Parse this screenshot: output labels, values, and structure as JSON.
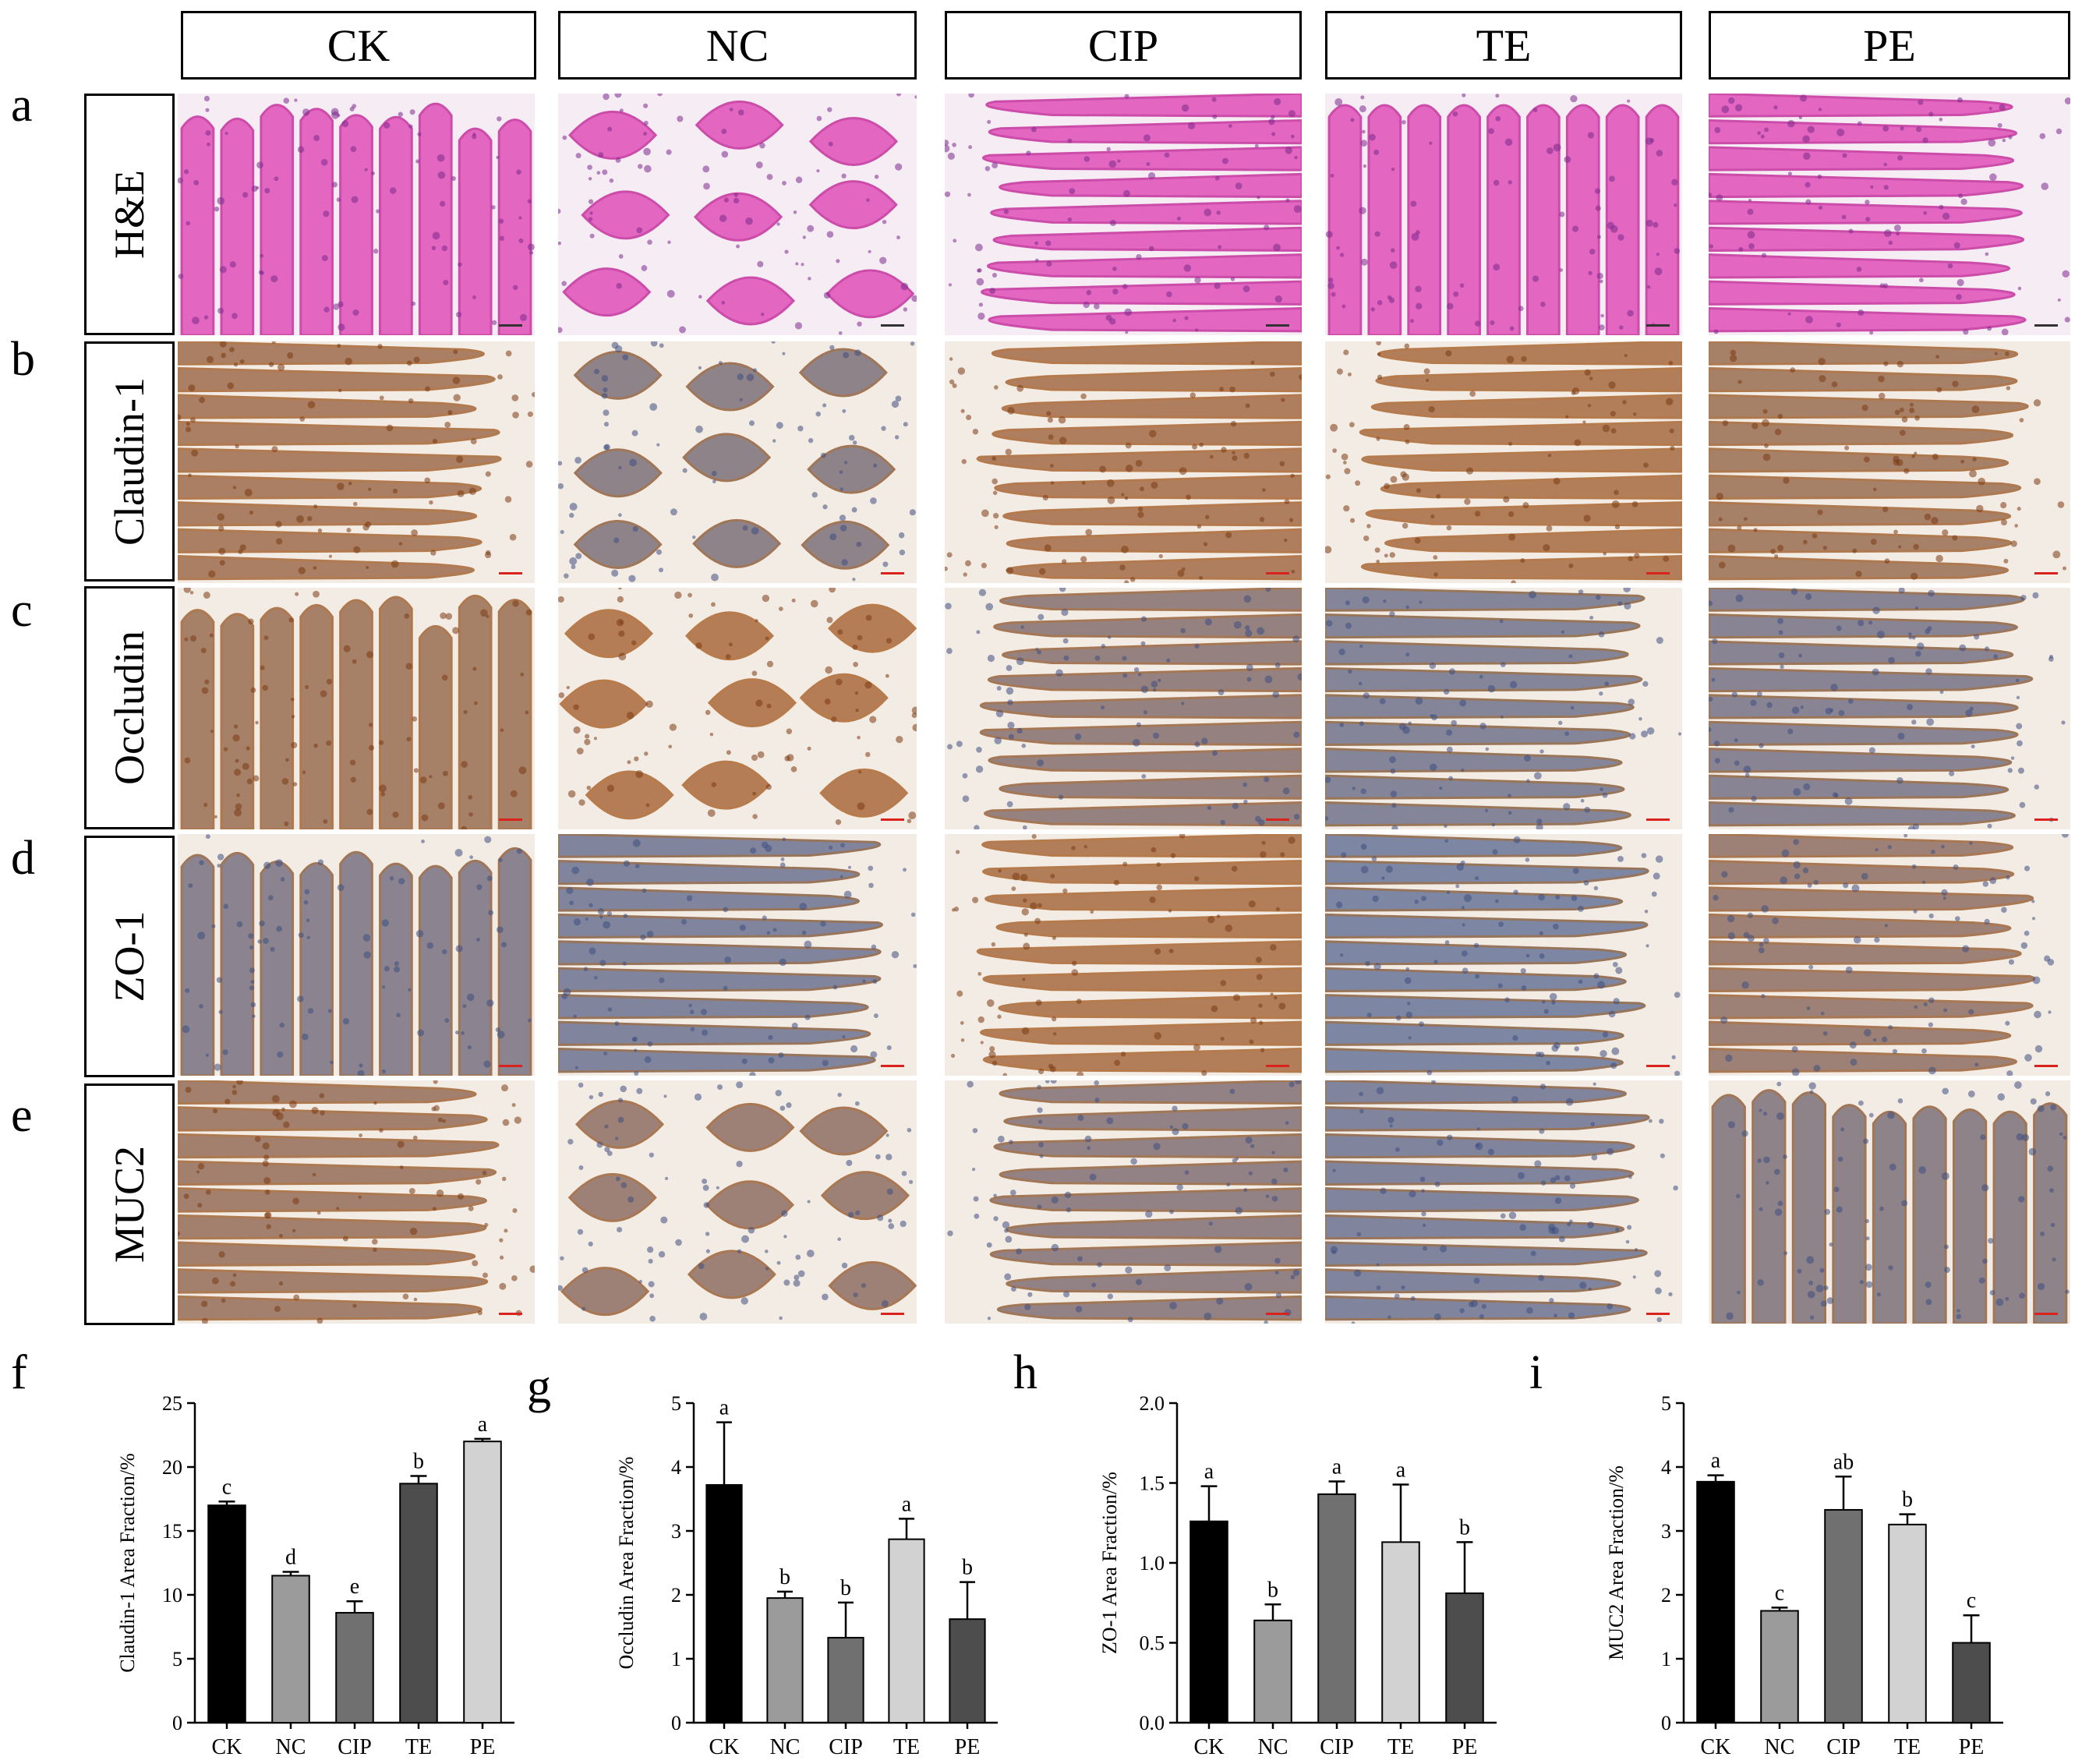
{
  "figure": {
    "row_letters": [
      "a",
      "b",
      "c",
      "d",
      "e"
    ],
    "chart_letters": [
      "f",
      "g",
      "h",
      "i"
    ],
    "column_headers": [
      "CK",
      "NC",
      "CIP",
      "TE",
      "PE"
    ],
    "rows": [
      {
        "letter": "a",
        "label": "H&E",
        "stain": "he"
      },
      {
        "letter": "b",
        "label": "Claudin-1",
        "stain": "ihc"
      },
      {
        "letter": "c",
        "label": "Occludin",
        "stain": "ihc"
      },
      {
        "letter": "d",
        "label": "ZO-1",
        "stain": "ihc"
      },
      {
        "letter": "e",
        "label": "MUC2",
        "stain": "ihc"
      }
    ]
  },
  "colors": {
    "he_background": "#f6ecf3",
    "he_tissue": "#e25bbd",
    "he_nuclei": "#7b2a8c",
    "ihc_background": "#f3ece4",
    "ihc_brown": "#b8733e",
    "ihc_blue": "#6c7fa8",
    "scale_bar": "#d9231f"
  },
  "micrographs": [
    [
      {
        "stain": "he",
        "pattern": "villi-vertical"
      },
      {
        "stain": "he",
        "pattern": "villi-loops"
      },
      {
        "stain": "he",
        "pattern": "villi-fan"
      },
      {
        "stain": "he",
        "pattern": "villi-dense"
      },
      {
        "stain": "he",
        "pattern": "villi-diagonal"
      }
    ],
    [
      {
        "stain": "ihc",
        "brown": 0.75,
        "pattern": "fan-left"
      },
      {
        "stain": "ihc",
        "brown": 0.35,
        "pattern": "crowded"
      },
      {
        "stain": "ihc",
        "brown": 0.8,
        "pattern": "fan-right"
      },
      {
        "stain": "ihc",
        "brown": 0.85,
        "pattern": "fan-right"
      },
      {
        "stain": "ihc",
        "brown": 0.7,
        "pattern": "fan-left"
      }
    ],
    [
      {
        "stain": "ihc",
        "brown": 0.7,
        "pattern": "vertical"
      },
      {
        "stain": "ihc",
        "brown": 0.9,
        "pattern": "crowded"
      },
      {
        "stain": "ihc",
        "brown": 0.45,
        "pattern": "fan-right"
      },
      {
        "stain": "ihc",
        "brown": 0.2,
        "pattern": "fan-left"
      },
      {
        "stain": "ihc",
        "brown": 0.25,
        "pattern": "fan-left"
      }
    ],
    [
      {
        "stain": "ihc",
        "brown": 0.3,
        "pattern": "vertical"
      },
      {
        "stain": "ihc",
        "brown": 0.15,
        "pattern": "fan-left"
      },
      {
        "stain": "ihc",
        "brown": 0.85,
        "pattern": "fan-right"
      },
      {
        "stain": "ihc",
        "brown": 0.1,
        "pattern": "fan-left"
      },
      {
        "stain": "ihc",
        "brown": 0.55,
        "pattern": "fan-left"
      }
    ],
    [
      {
        "stain": "ihc",
        "brown": 0.65,
        "pattern": "fan-left"
      },
      {
        "stain": "ihc",
        "brown": 0.55,
        "pattern": "crowded"
      },
      {
        "stain": "ihc",
        "brown": 0.4,
        "pattern": "fan-right"
      },
      {
        "stain": "ihc",
        "brown": 0.15,
        "pattern": "fan-left"
      },
      {
        "stain": "ihc",
        "brown": 0.35,
        "pattern": "vertical"
      }
    ]
  ],
  "chart_data": [
    {
      "type": "bar",
      "panel": "f",
      "categories": [
        "CK",
        "NC",
        "CIP",
        "TE",
        "PE"
      ],
      "values": [
        17.0,
        11.5,
        8.6,
        18.7,
        22.0
      ],
      "errors": [
        0.3,
        0.3,
        0.9,
        0.6,
        0.2
      ],
      "letters": [
        "c",
        "d",
        "e",
        "b",
        "a"
      ],
      "colors": [
        "#000000",
        "#9b9b9b",
        "#707070",
        "#4d4d4d",
        "#d2d2d2"
      ],
      "ylabel": "Claudin-1 Area Fraction/%",
      "ylim": [
        0,
        25
      ],
      "yticks": [
        0,
        5,
        10,
        15,
        20,
        25
      ],
      "ytick_labels": [
        "0",
        "5",
        "10",
        "15",
        "20",
        "25"
      ]
    },
    {
      "type": "bar",
      "panel": "g",
      "categories": [
        "CK",
        "NC",
        "CIP",
        "TE",
        "PE"
      ],
      "values": [
        3.72,
        1.95,
        1.33,
        2.87,
        1.62
      ],
      "errors": [
        0.98,
        0.1,
        0.55,
        0.32,
        0.58
      ],
      "letters": [
        "a",
        "b",
        "b",
        "a",
        "b"
      ],
      "colors": [
        "#000000",
        "#9b9b9b",
        "#707070",
        "#d2d2d2",
        "#4d4d4d"
      ],
      "ylabel": "Occludin Area Fraction/%",
      "ylim": [
        0,
        5
      ],
      "yticks": [
        0,
        1,
        2,
        3,
        4,
        5
      ],
      "ytick_labels": [
        "0",
        "1",
        "2",
        "3",
        "4",
        "5"
      ]
    },
    {
      "type": "bar",
      "panel": "h",
      "categories": [
        "CK",
        "NC",
        "CIP",
        "TE",
        "PE"
      ],
      "values": [
        1.26,
        0.64,
        1.43,
        1.13,
        0.81
      ],
      "errors": [
        0.22,
        0.1,
        0.08,
        0.36,
        0.32
      ],
      "letters": [
        "a",
        "b",
        "a",
        "a",
        "b"
      ],
      "colors": [
        "#000000",
        "#9b9b9b",
        "#707070",
        "#d2d2d2",
        "#4d4d4d"
      ],
      "ylabel": "ZO-1 Area Fraction/%",
      "ylim": [
        0,
        2.0
      ],
      "yticks": [
        0,
        0.5,
        1.0,
        1.5,
        2.0
      ],
      "ytick_labels": [
        "0.0",
        "0.5",
        "1.0",
        "1.5",
        "2.0"
      ]
    },
    {
      "type": "bar",
      "panel": "i",
      "categories": [
        "CK",
        "NC",
        "CIP",
        "TE",
        "PE"
      ],
      "values": [
        3.77,
        1.75,
        3.33,
        3.1,
        1.25
      ],
      "errors": [
        0.1,
        0.05,
        0.52,
        0.16,
        0.43
      ],
      "letters": [
        "a",
        "c",
        "ab",
        "b",
        "c"
      ],
      "colors": [
        "#000000",
        "#9b9b9b",
        "#707070",
        "#d2d2d2",
        "#4d4d4d"
      ],
      "ylabel": "MUC2 Area Fraction/%",
      "ylim": [
        0,
        5
      ],
      "yticks": [
        0,
        1,
        2,
        3,
        4,
        5
      ],
      "ytick_labels": [
        "0",
        "1",
        "2",
        "3",
        "4",
        "5"
      ]
    }
  ]
}
